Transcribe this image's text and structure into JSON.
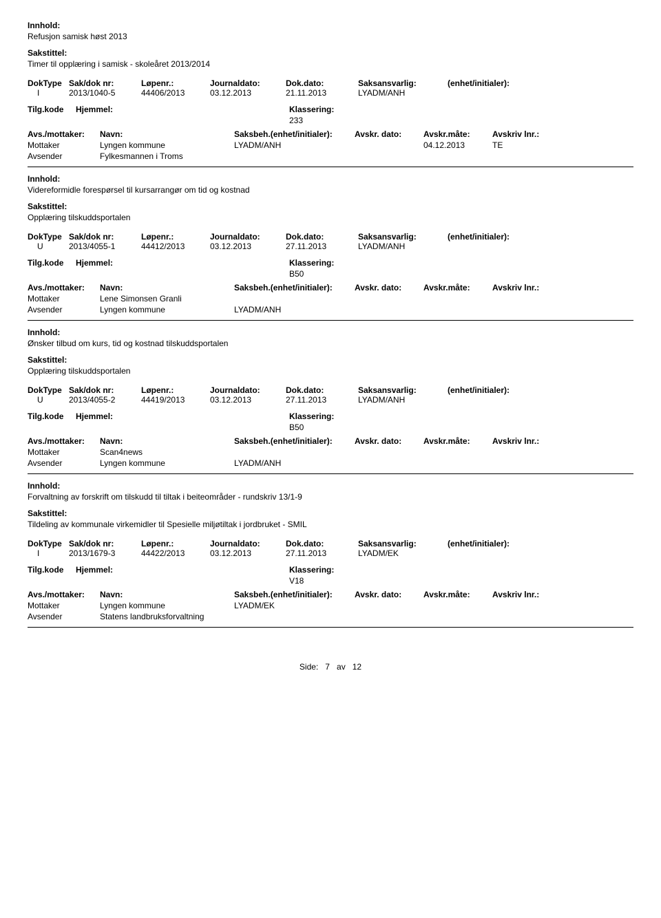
{
  "labels": {
    "innhold": "Innhold:",
    "sakstittel": "Sakstittel:",
    "doktype": "DokType",
    "sakdoknr": "Sak/dok nr:",
    "lopenr": "Løpenr.:",
    "journaldato": "Journaldato:",
    "dokdato": "Dok.dato:",
    "saksansvarlig": "Saksansvarlig:",
    "enhetinit": "(enhet/initialer):",
    "tilgkode": "Tilg.kode",
    "hjemmel": "Hjemmel:",
    "klassering": "Klassering:",
    "avsmottaker": "Avs./mottaker:",
    "navn": "Navn:",
    "saksbeh": "Saksbeh.(enhet/initialer):",
    "avskrdato": "Avskr. dato:",
    "avskrmate": "Avskr.måte:",
    "avskrivlnr": "Avskriv lnr.:",
    "mottaker": "Mottaker",
    "avsender": "Avsender"
  },
  "records": [
    {
      "innhold": "Refusjon samisk høst 2013",
      "sakstittel": "Timer til opplæring i samisk - skoleåret 2013/2014",
      "doktype": "I",
      "sakdoknr": "2013/1040-5",
      "lopenr": "44406/2013",
      "journaldato": "03.12.2013",
      "dokdato": "21.11.2013",
      "saksansvarlig": "LYADM/ANH",
      "klassering": "233",
      "parties": [
        {
          "role": "Mottaker",
          "navn": "Lyngen kommune",
          "saksbeh": "LYADM/ANH",
          "avskrdato": "04.12.2013",
          "avskrmate": "TE"
        },
        {
          "role": "Avsender",
          "navn": "Fylkesmannen i Troms",
          "saksbeh": "",
          "avskrdato": "",
          "avskrmate": ""
        }
      ]
    },
    {
      "innhold": "Videreformidle forespørsel til kursarrangør om tid og kostnad",
      "sakstittel": "Opplæring tilskuddsportalen",
      "doktype": "U",
      "sakdoknr": "2013/4055-1",
      "lopenr": "44412/2013",
      "journaldato": "03.12.2013",
      "dokdato": "27.11.2013",
      "saksansvarlig": "LYADM/ANH",
      "klassering": "B50",
      "parties": [
        {
          "role": "Mottaker",
          "navn": "Lene Simonsen Granli",
          "saksbeh": "",
          "avskrdato": "",
          "avskrmate": ""
        },
        {
          "role": "Avsender",
          "navn": "Lyngen kommune",
          "saksbeh": "LYADM/ANH",
          "avskrdato": "",
          "avskrmate": ""
        }
      ]
    },
    {
      "innhold": "Ønsker tilbud om kurs, tid og kostnad tilskuddsportalen",
      "sakstittel": "Opplæring tilskuddsportalen",
      "doktype": "U",
      "sakdoknr": "2013/4055-2",
      "lopenr": "44419/2013",
      "journaldato": "03.12.2013",
      "dokdato": "27.11.2013",
      "saksansvarlig": "LYADM/ANH",
      "klassering": "B50",
      "parties": [
        {
          "role": "Mottaker",
          "navn": "Scan4news",
          "saksbeh": "",
          "avskrdato": "",
          "avskrmate": ""
        },
        {
          "role": "Avsender",
          "navn": "Lyngen kommune",
          "saksbeh": "LYADM/ANH",
          "avskrdato": "",
          "avskrmate": ""
        }
      ]
    },
    {
      "innhold": "Forvaltning av forskrift om tilskudd til tiltak i beiteområder - rundskriv 13/1-9",
      "sakstittel": "Tildeling av kommunale virkemidler til Spesielle miljøtiltak i jordbruket - SMIL",
      "doktype": "I",
      "sakdoknr": "2013/1679-3",
      "lopenr": "44422/2013",
      "journaldato": "03.12.2013",
      "dokdato": "27.11.2013",
      "saksansvarlig": "LYADM/EK",
      "klassering": "V18",
      "parties": [
        {
          "role": "Mottaker",
          "navn": "Lyngen kommune",
          "saksbeh": "LYADM/EK",
          "avskrdato": "",
          "avskrmate": ""
        },
        {
          "role": "Avsender",
          "navn": "Statens landbruksforvaltning",
          "saksbeh": "",
          "avskrdato": "",
          "avskrmate": ""
        }
      ]
    }
  ],
  "footer": {
    "prefix": "Side:",
    "page": "7",
    "sep": "av",
    "total": "12"
  }
}
